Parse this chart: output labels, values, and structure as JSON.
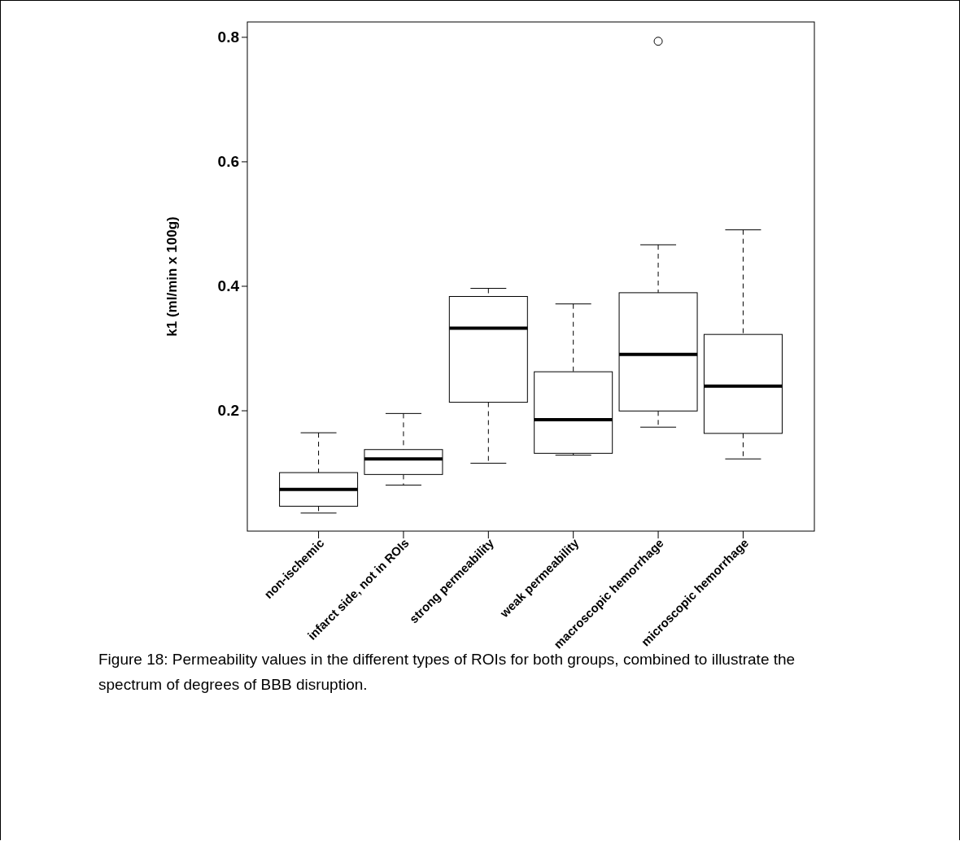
{
  "chart_data": {
    "type": "box",
    "ylabel": "k1 (ml/min x 100g)",
    "categories": [
      "non-ischemic",
      "infarct side, not in ROIs",
      "strong permeability",
      "weak permeability",
      "macroscopic hemorrhage",
      "microscopic hemorrhage"
    ],
    "boxes": [
      {
        "low": 0.035,
        "q1": 0.046,
        "median": 0.073,
        "q3": 0.1,
        "high": 0.164
      },
      {
        "low": 0.08,
        "q1": 0.097,
        "median": 0.122,
        "q3": 0.137,
        "high": 0.195
      },
      {
        "low": 0.115,
        "q1": 0.213,
        "median": 0.332,
        "q3": 0.383,
        "high": 0.396
      },
      {
        "low": 0.128,
        "q1": 0.131,
        "median": 0.185,
        "q3": 0.262,
        "high": 0.371
      },
      {
        "low": 0.173,
        "q1": 0.199,
        "median": 0.29,
        "q3": 0.389,
        "high": 0.466,
        "outliers": [
          0.793
        ]
      },
      {
        "low": 0.122,
        "q1": 0.163,
        "median": 0.239,
        "q3": 0.322,
        "high": 0.49
      }
    ],
    "ylim": [
      0.006,
      0.824
    ],
    "yticks": [
      0.2,
      0.4,
      0.6,
      0.8
    ],
    "annotations": [
      "Figure 18: Permeability values in the different types of ROIs for both groups, combined to illustrate the spectrum of degrees of BBB disruption."
    ]
  }
}
